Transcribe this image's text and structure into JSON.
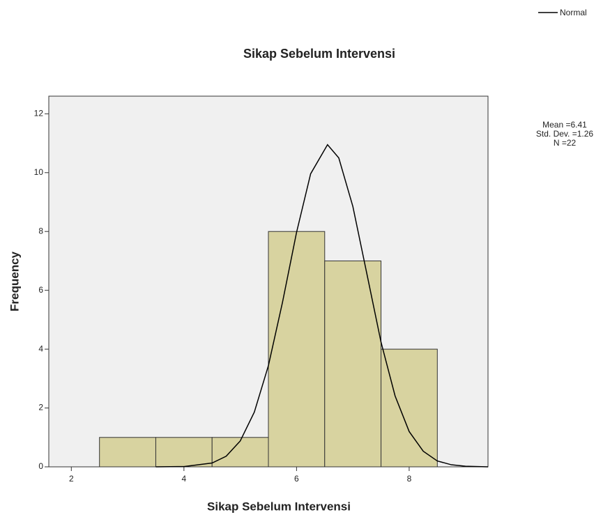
{
  "chart_data": {
    "type": "histogram",
    "title": "Sikap Sebelum Intervensi",
    "x_label": "Sikap Sebelum Intervensi",
    "y_label": "Frequency",
    "bins": [
      2.5,
      3.5,
      4.5,
      5.5,
      6.5,
      7.5,
      8.5
    ],
    "counts": [
      1,
      1,
      1,
      8,
      7,
      4
    ],
    "color": "#d8d3a0",
    "curve": {
      "name": "Normal",
      "color": "#000000",
      "x": [
        3.5,
        4,
        4.5,
        4.75,
        5,
        5.25,
        5.5,
        5.75,
        6,
        6.25,
        6.55,
        6.75,
        7,
        7.25,
        7.5,
        7.75,
        8,
        8.25,
        8.5,
        8.75,
        9,
        9.4
      ],
      "y": [
        0,
        0.01,
        0.13,
        0.36,
        0.88,
        1.86,
        3.44,
        5.59,
        7.97,
        9.96,
        10.95,
        10.5,
        8.85,
        6.55,
        4.24,
        2.41,
        1.2,
        0.53,
        0.2,
        0.07,
        0.02,
        0
      ]
    },
    "annotations": [
      "Mean =6.41",
      "Std. Dev. =1.26",
      "N =22"
    ],
    "xlim": [
      1.6,
      9.4
    ],
    "ylim": [
      0,
      12.6
    ],
    "xticks": [
      2,
      4,
      6,
      8
    ],
    "yticks": [
      0,
      2,
      4,
      6,
      8,
      10,
      12
    ]
  }
}
